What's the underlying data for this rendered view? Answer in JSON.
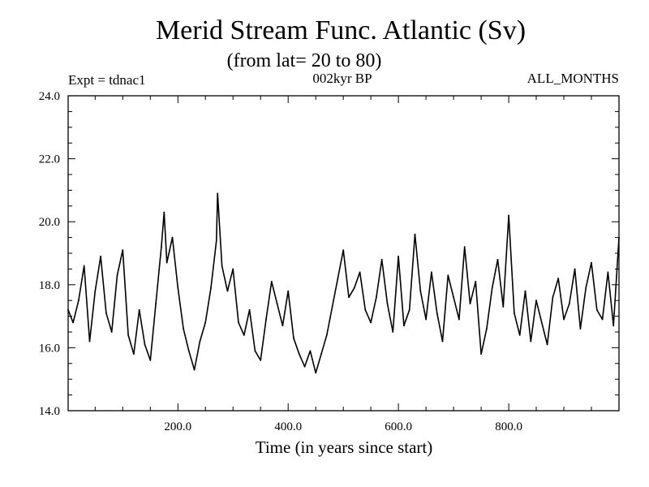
{
  "chart_data": {
    "type": "line",
    "title": "Merid Stream Func. Atlantic (Sv)",
    "subtitle": "(from lat= 20 to 80)",
    "header_left": "Expt = tdnac1",
    "header_center": "002kyr BP",
    "header_right": "ALL_MONTHS",
    "xlabel": "Time (in years since start)",
    "ylabel": "",
    "xlim": [
      1,
      1000
    ],
    "ylim": [
      14.0,
      24.0
    ],
    "xticks": [
      200,
      400,
      600,
      800
    ],
    "xtick_labels": [
      "200.0",
      "400.0",
      "600.0",
      "800.0"
    ],
    "yticks": [
      14,
      16,
      18,
      20,
      22,
      24
    ],
    "ytick_labels": [
      "14.0",
      "16.0",
      "18.0",
      "20.0",
      "22.0",
      "24.0"
    ],
    "series": [
      {
        "name": "Merid Stream Func. Atlantic",
        "color": "#000000",
        "x": [
          1,
          10,
          20,
          30,
          40,
          50,
          60,
          70,
          80,
          90,
          100,
          110,
          120,
          130,
          140,
          150,
          160,
          170,
          175,
          180,
          190,
          200,
          210,
          220,
          230,
          240,
          250,
          260,
          270,
          272,
          280,
          290,
          300,
          310,
          320,
          330,
          340,
          350,
          360,
          370,
          380,
          390,
          400,
          410,
          420,
          430,
          440,
          450,
          460,
          470,
          480,
          490,
          500,
          510,
          520,
          530,
          540,
          550,
          560,
          570,
          580,
          590,
          600,
          610,
          620,
          630,
          640,
          650,
          660,
          670,
          680,
          690,
          700,
          710,
          720,
          730,
          740,
          750,
          760,
          770,
          780,
          790,
          800,
          810,
          820,
          830,
          840,
          850,
          860,
          870,
          880,
          890,
          900,
          910,
          920,
          930,
          940,
          950,
          960,
          970,
          980,
          990,
          1000
        ],
        "values": [
          17.2,
          16.8,
          17.5,
          18.6,
          16.2,
          17.8,
          18.9,
          17.1,
          16.5,
          18.3,
          19.1,
          16.4,
          15.8,
          17.2,
          16.1,
          15.6,
          17.4,
          19.2,
          20.3,
          18.7,
          19.5,
          17.9,
          16.6,
          15.9,
          15.3,
          16.2,
          16.8,
          17.9,
          19.4,
          20.9,
          18.6,
          17.8,
          18.5,
          16.8,
          16.4,
          17.2,
          15.9,
          15.6,
          16.9,
          18.1,
          17.4,
          16.7,
          17.8,
          16.3,
          15.8,
          15.4,
          15.9,
          15.2,
          15.8,
          16.4,
          17.3,
          18.2,
          19.1,
          17.6,
          17.9,
          18.4,
          17.2,
          16.8,
          17.6,
          18.8,
          17.4,
          16.5,
          18.9,
          16.7,
          17.2,
          19.6,
          17.8,
          16.9,
          18.4,
          17.1,
          16.2,
          18.3,
          17.6,
          16.9,
          19.2,
          17.4,
          18.1,
          15.8,
          16.6,
          17.9,
          18.8,
          17.3,
          20.2,
          17.1,
          16.4,
          17.8,
          16.2,
          17.5,
          16.8,
          16.1,
          17.6,
          18.2,
          16.9,
          17.4,
          18.5,
          16.6,
          17.9,
          18.7,
          17.2,
          16.9,
          18.4,
          16.7,
          19.5
        ]
      }
    ]
  }
}
